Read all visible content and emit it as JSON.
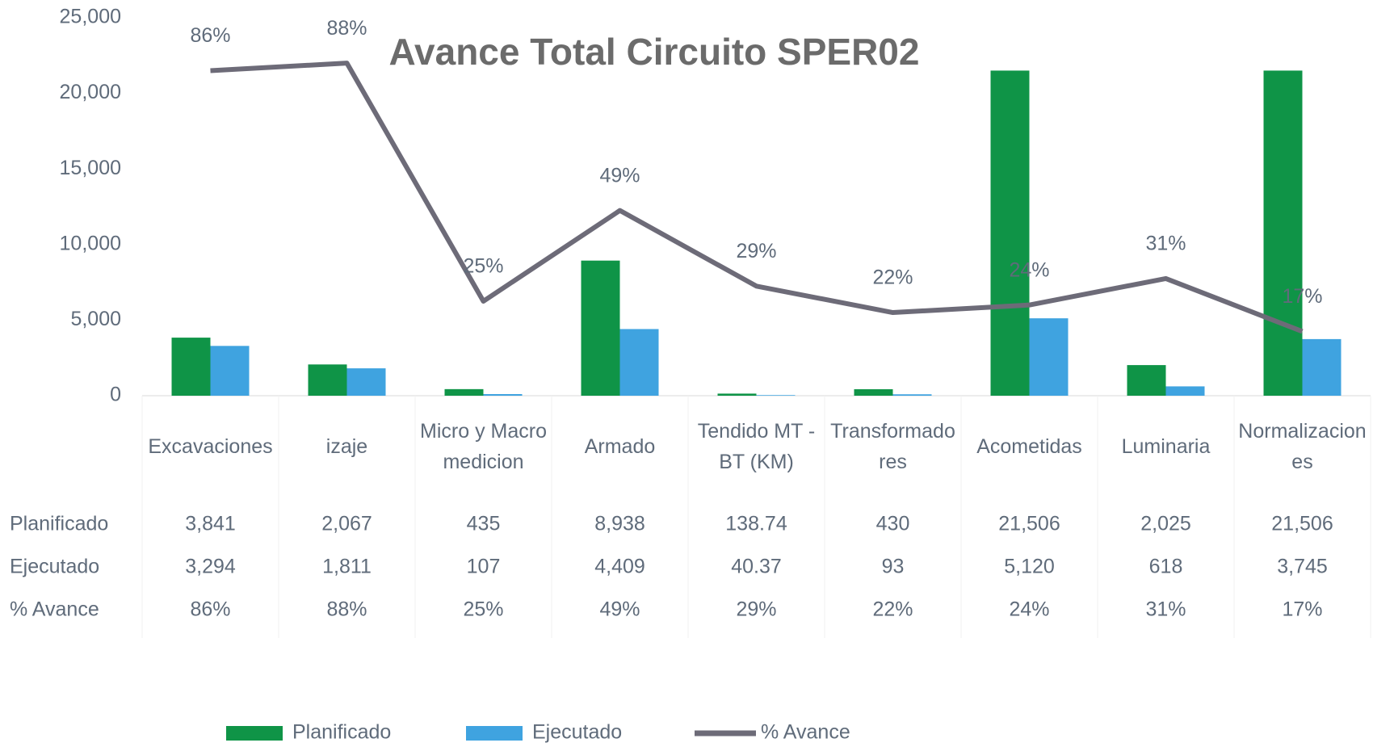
{
  "chart_data": {
    "type": "bar_line",
    "title": "Avance Total Circuito SPER02",
    "categories": [
      "Excavaciones",
      "izaje",
      "Micro y Macromedicion",
      "Armado",
      "Tendido MT - BT (KM)",
      "Transformadores",
      "Acometidas",
      "Luminaria",
      "Normalizaciones"
    ],
    "ylim": [
      0,
      25000
    ],
    "yticks": [
      0,
      {
        "value": 5000,
        "label": "5,000"
      },
      {
        "value": 10000,
        "label": "10,000"
      },
      {
        "value": 15000,
        "label": "15,000"
      },
      {
        "value": 20000,
        "label": "20,000"
      },
      {
        "value": 25000,
        "label": "25,000"
      }
    ],
    "y2lim": [
      0,
      100
    ],
    "series": [
      {
        "name": "Planificado",
        "type": "bar",
        "color": "#0f9447",
        "values": [
          3841,
          2067,
          435,
          8938,
          138.74,
          430,
          21506,
          2025,
          21506
        ],
        "value_labels": [
          "3,841",
          "2,067",
          "435",
          "8,938",
          "138.74",
          "430",
          "21,506",
          "2,025",
          "21,506"
        ]
      },
      {
        "name": "Ejecutado",
        "type": "bar",
        "color": "#3fa3e0",
        "values": [
          3294,
          1811,
          107,
          4409,
          40.37,
          93,
          5120,
          618,
          3745
        ],
        "value_labels": [
          "3,294",
          "1,811",
          "107",
          "4,409",
          "40.37",
          "93",
          "5,120",
          "618",
          "3,745"
        ]
      },
      {
        "name": "% Avance",
        "type": "line",
        "axis": "y2",
        "color": "#6d6b78",
        "values": [
          86,
          88,
          25,
          49,
          29,
          22,
          24,
          31,
          17
        ],
        "value_labels": [
          "86%",
          "88%",
          "25%",
          "49%",
          "29%",
          "22%",
          "24%",
          "31%",
          "17%"
        ]
      }
    ],
    "legend": "bottom"
  }
}
